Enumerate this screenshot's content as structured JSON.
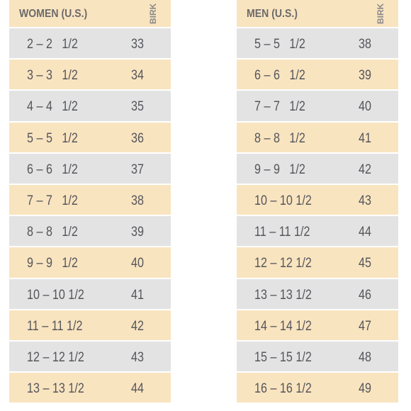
{
  "colors": {
    "cream": "#f9e4c0",
    "gray": "#e3e3e4",
    "text": "#55565a"
  },
  "women": {
    "header": "WOMEN (U.S.)",
    "column_label": "BIRK",
    "rows": [
      {
        "size": "2 – 2   1/2",
        "eu": "33"
      },
      {
        "size": "3 – 3   1/2",
        "eu": "34"
      },
      {
        "size": "4 – 4   1/2",
        "eu": "35"
      },
      {
        "size": "5 – 5   1/2",
        "eu": "36"
      },
      {
        "size": "6 – 6   1/2",
        "eu": "37"
      },
      {
        "size": "7 – 7   1/2",
        "eu": "38"
      },
      {
        "size": "8 – 8   1/2",
        "eu": "39"
      },
      {
        "size": "9 – 9   1/2",
        "eu": "40"
      },
      {
        "size": "10 – 10 1/2",
        "eu": "41"
      },
      {
        "size": "11 – 11 1/2",
        "eu": "42"
      },
      {
        "size": "12 – 12 1/2",
        "eu": "43"
      },
      {
        "size": "13 – 13 1/2",
        "eu": "44"
      }
    ]
  },
  "men": {
    "header": "MEN (U.S.)",
    "column_label": "BIRK",
    "rows": [
      {
        "size": "5 – 5   1/2",
        "eu": "38"
      },
      {
        "size": "6 – 6   1/2",
        "eu": "39"
      },
      {
        "size": "7 – 7   1/2",
        "eu": "40"
      },
      {
        "size": "8 – 8   1/2",
        "eu": "41"
      },
      {
        "size": "9 – 9   1/2",
        "eu": "42"
      },
      {
        "size": "10 – 10 1/2",
        "eu": "43"
      },
      {
        "size": "11 – 11 1/2",
        "eu": "44"
      },
      {
        "size": "12 – 12 1/2",
        "eu": "45"
      },
      {
        "size": "13 – 13 1/2",
        "eu": "46"
      },
      {
        "size": "14 – 14 1/2",
        "eu": "47"
      },
      {
        "size": "15 – 15 1/2",
        "eu": "48"
      },
      {
        "size": "16 – 16 1/2",
        "eu": "49"
      }
    ]
  }
}
